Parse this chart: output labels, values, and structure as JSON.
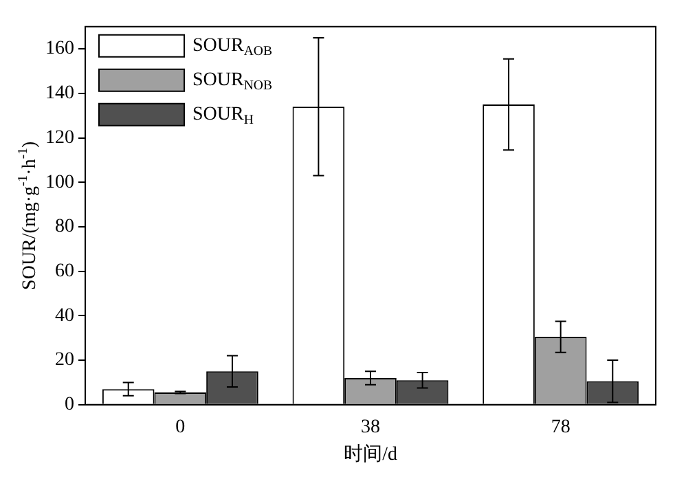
{
  "chart_data": {
    "type": "bar",
    "xlabel": "时间/d",
    "ylabel": "SOUR/(mg·g$^{-1}$·h$^{-1}$)",
    "categories": [
      "0",
      "38",
      "78"
    ],
    "series": [
      {
        "name": "SOUR$_{AOB}$",
        "color": "#ffffff",
        "values": [
          7,
          134,
          135
        ],
        "errors": [
          3,
          31,
          20.5
        ]
      },
      {
        "name": "SOUR$_{NOB}$",
        "color": "#a0a0a0",
        "values": [
          5.5,
          12,
          30.5
        ],
        "errors": [
          0.5,
          3,
          7
        ]
      },
      {
        "name": "SOUR$_{H}$",
        "color": "#505050",
        "values": [
          15,
          11,
          10.5
        ],
        "errors": [
          7,
          3.5,
          9.5
        ]
      }
    ],
    "ylim": [
      0,
      170
    ],
    "yticks": [
      0,
      20,
      40,
      60,
      80,
      100,
      120,
      140,
      160
    ],
    "grid": false,
    "legend": "top left"
  }
}
